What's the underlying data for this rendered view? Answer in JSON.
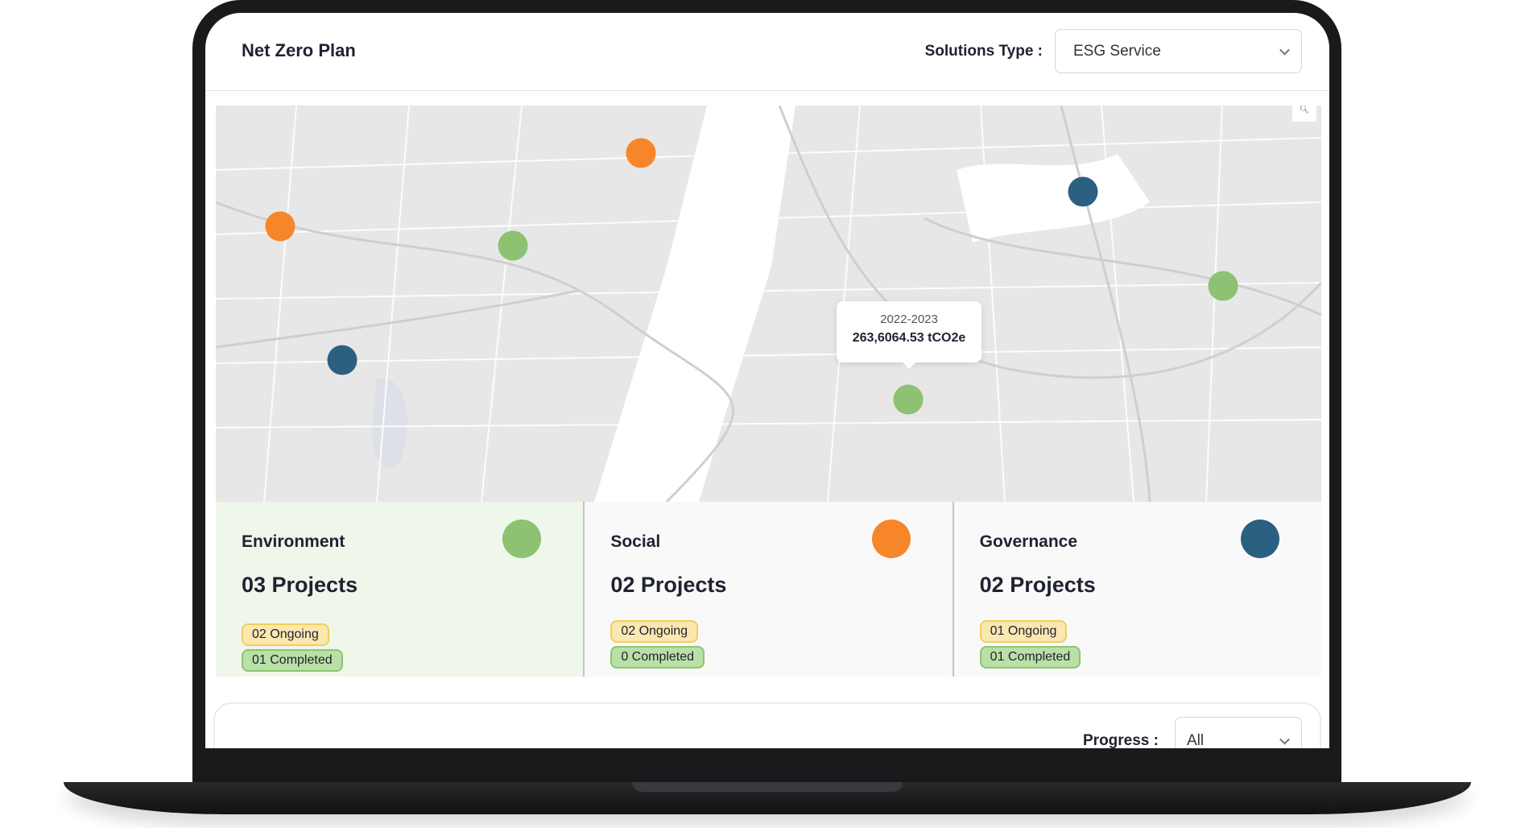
{
  "header": {
    "title": "Net Zero Plan",
    "solutions_label": "Solutions Type :",
    "solutions_value": "ESG Service"
  },
  "map": {
    "tooltip": {
      "period": "2022-2023",
      "value": "263,6064.53 tCO2e"
    },
    "zoom_icon": "search-icon",
    "markers": [
      {
        "category": "social",
        "color": "#f7862a"
      },
      {
        "category": "social",
        "color": "#f7862a"
      },
      {
        "category": "environment",
        "color": "#8cc271"
      },
      {
        "category": "governance",
        "color": "#2b6080"
      },
      {
        "category": "governance",
        "color": "#2b6080"
      },
      {
        "category": "environment",
        "color": "#8cc271"
      },
      {
        "category": "environment",
        "color": "#8cc271"
      }
    ]
  },
  "cards": [
    {
      "title": "Environment",
      "projects": "03 Projects",
      "ongoing": "02 Ongoing",
      "completed": "01 Completed",
      "color": "#8cc271"
    },
    {
      "title": "Social",
      "projects": "02 Projects",
      "ongoing": "02 Ongoing",
      "completed": "0 Completed",
      "color": "#f7862a"
    },
    {
      "title": "Governance",
      "projects": "02 Projects",
      "ongoing": "01 Ongoing",
      "completed": "01 Completed",
      "color": "#2b6080"
    }
  ],
  "progress": {
    "label": "Progress :",
    "value": "All"
  }
}
